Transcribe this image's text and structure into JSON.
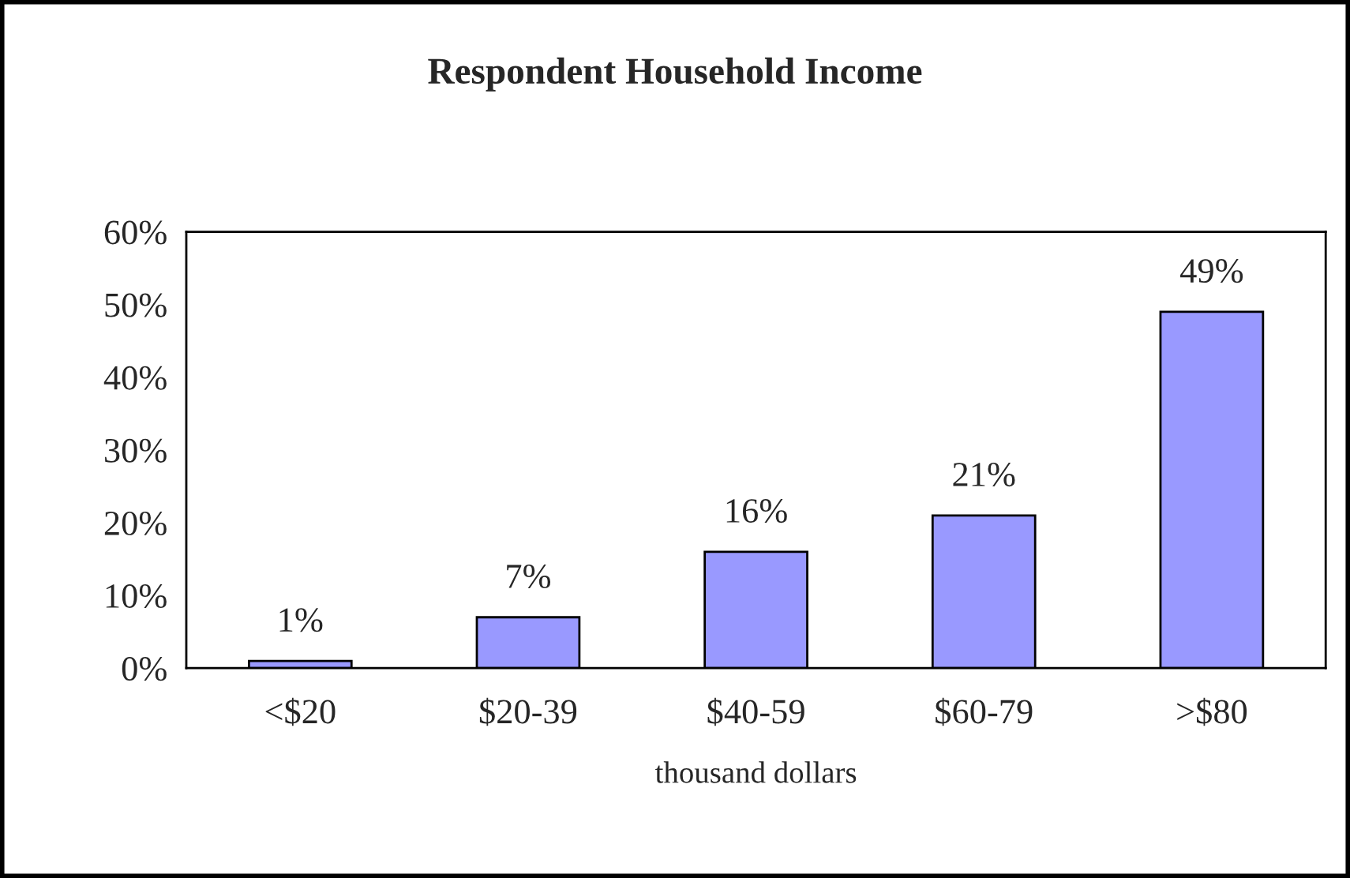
{
  "chart_data": {
    "type": "bar",
    "title": "Respondent Household Income",
    "xlabel": "thousand dollars",
    "categories": [
      "<$20",
      "$20-39",
      "$40-59",
      "$60-79",
      ">$80"
    ],
    "values": [
      1,
      7,
      16,
      21,
      49
    ],
    "value_labels": [
      "1%",
      "7%",
      "16%",
      "21%",
      "49%"
    ],
    "color": "#9999ff",
    "ylim": [
      0,
      60
    ],
    "yticks": [
      {
        "value": 0,
        "label": "0%"
      },
      {
        "value": 10,
        "label": "10%"
      },
      {
        "value": 20,
        "label": "20%"
      },
      {
        "value": 30,
        "label": "30%"
      },
      {
        "value": 40,
        "label": "40%"
      },
      {
        "value": 50,
        "label": "50%"
      },
      {
        "value": 60,
        "label": "60%"
      }
    ],
    "grid": false,
    "legend": false
  }
}
